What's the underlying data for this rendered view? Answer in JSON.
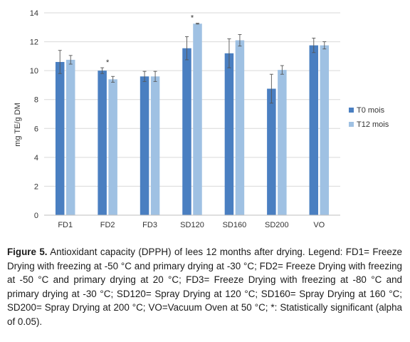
{
  "chart_data": {
    "type": "bar",
    "ylabel": "mg TE/g DM",
    "ylim": [
      0,
      14
    ],
    "yticks": [
      0,
      2,
      4,
      6,
      8,
      10,
      12,
      14
    ],
    "grid": true,
    "legend_position": "right",
    "categories": [
      "FD1",
      "FD2",
      "FD3",
      "SD120",
      "SD160",
      "SD200",
      "VO"
    ],
    "series": [
      {
        "name": "T0 mois",
        "color": "#4a7fc1",
        "values": [
          10.6,
          10.0,
          9.6,
          11.55,
          11.2,
          8.75,
          11.75
        ],
        "errors": [
          0.8,
          0.2,
          0.35,
          0.8,
          1.0,
          1.0,
          0.5
        ]
      },
      {
        "name": "T12 mois",
        "color": "#9fc1e3",
        "values": [
          10.75,
          9.4,
          9.6,
          13.25,
          12.1,
          10.05,
          11.75
        ],
        "errors": [
          0.3,
          0.2,
          0.35,
          0.03,
          0.4,
          0.3,
          0.25
        ]
      }
    ],
    "annotations": [
      {
        "text": "*",
        "category": "FD2"
      },
      {
        "text": "*",
        "category": "SD120"
      }
    ]
  },
  "caption": {
    "label": "Figure 5.",
    "text": "Antioxidant capacity (DPPH) of lees 12 months after drying. Legend: FD1= Freeze Drying with freezing at -50 °C and primary drying at -30 °C; FD2= Freeze Drying with freezing at -50 °C and primary drying at 20 °C; FD3= Freeze Drying with freezing at -80 °C and primary drying at -30 °C; SD120= Spray Drying at 120 °C; SD160= Spray Drying at 160 °C; SD200= Spray Drying at 200 °C; VO=Vacuum Oven at 50 °C; *: Statistically significant (alpha of 0.05)."
  }
}
